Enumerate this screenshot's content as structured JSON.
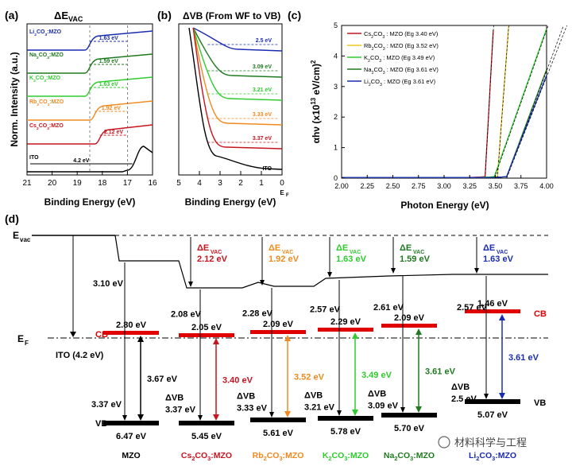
{
  "panel_labels": {
    "a": "(a)",
    "b": "(b)",
    "c": "(c)",
    "d": "(d)"
  },
  "chart_data": [
    {
      "type": "line",
      "panel": "(a)",
      "title": "ΔE_VAC",
      "xlabel": "Binding Energy (eV)",
      "ylabel": "Norm. Intensity (a.u.)",
      "x_ticks": [
        "21",
        "20",
        "19",
        "18",
        "17",
        "16"
      ],
      "xlim": [
        21,
        16
      ],
      "series": [
        {
          "name": "Li2CO3:MZO",
          "color": "#1a2db0",
          "cutoff": 18.5,
          "annotation": "1.63 eV"
        },
        {
          "name": "Na2CO3:MZO",
          "color": "#1f7a1f",
          "cutoff": 18.5,
          "annotation": "1.59 eV"
        },
        {
          "name": "K2CO3:MZO",
          "color": "#2ecc2e",
          "cutoff": 18.5,
          "annotation": "1.63 eV"
        },
        {
          "name": "Rb2CO3:MZO",
          "color": "#f08a1e",
          "cutoff": 18.3,
          "annotation": "1.92 eV"
        },
        {
          "name": "Cs2CO3:MZO",
          "color": "#c8141e",
          "cutoff": 18.1,
          "annotation": "2.12 eV"
        },
        {
          "name": "ITO",
          "color": "#000000",
          "cutoff": 16.5,
          "annotation": "4.2 eV"
        }
      ]
    },
    {
      "type": "line",
      "panel": "(b)",
      "title": "ΔVB (From WF to VB)",
      "xlabel": "Binding Energy (eV)",
      "x_ticks": [
        "5",
        "4",
        "3",
        "2",
        "1",
        "0"
      ],
      "x_end_label": "E_F",
      "xlim": [
        5,
        0
      ],
      "series": [
        {
          "name": "Li2CO3:MZO",
          "color": "#1a2db0",
          "annotation": "2.5 eV"
        },
        {
          "name": "Na2CO3:MZO",
          "color": "#1f7a1f",
          "annotation": "3.09 eV"
        },
        {
          "name": "K2CO3:MZO",
          "color": "#2ecc2e",
          "annotation": "3.21 eV"
        },
        {
          "name": "Rb2CO3:MZO",
          "color": "#f08a1e",
          "annotation": "3.33 eV"
        },
        {
          "name": "Cs2CO3:MZO",
          "color": "#c8141e",
          "annotation": "3.37 eV"
        },
        {
          "name": "ITO",
          "color": "#000000",
          "annotation": "ITO"
        }
      ]
    },
    {
      "type": "line",
      "panel": "(c)",
      "xlabel": "Photon Energy (eV)",
      "ylabel": "αhν (x10^13 eV/cm)^2",
      "x_ticks": [
        "2.00",
        "2.25",
        "2.50",
        "2.75",
        "3.00",
        "3.25",
        "3.50",
        "3.75",
        "4.00"
      ],
      "y_ticks": [
        "0",
        "1",
        "2",
        "3",
        "4",
        "5"
      ],
      "xlim": [
        2.0,
        4.0
      ],
      "ylim": [
        0,
        5
      ],
      "legend_position": "top-left",
      "series": [
        {
          "name": "Cs2CO3 : MZO (Eg 3.40 eV)",
          "color": "#c8141e",
          "eg": 3.4
        },
        {
          "name": "Rb2CO3 : MZO (Eg 3.52 eV)",
          "color": "#f0c81e",
          "eg": 3.52
        },
        {
          "name": "K2CO3 : MZO (Eg 3.49 eV)",
          "color": "#2ecc2e",
          "eg": 3.49
        },
        {
          "name": "Na2CO3 : MZO (Eg 3.61 eV)",
          "color": "#1f7a1f",
          "eg": 3.61
        },
        {
          "name": "Li2CO3 : MZO (Eg 3.61 eV)",
          "color": "#1a2db0",
          "eg": 3.61
        }
      ]
    }
  ],
  "diagram": {
    "evac_label": "E_vac",
    "ef_label": "E_F",
    "cb_label": "CB",
    "vb_label": "VB",
    "ito_label": "ITO (4.2 eV)",
    "delta_vac_prefix": "ΔE_VAC",
    "mzo_vac_drop": "3.10 eV",
    "mzo_cb": "2.80 eV",
    "columns": [
      {
        "name": "MZO",
        "color": "#000000",
        "wf": "",
        "cb": "2.80 eV",
        "eg": "3.67 eV",
        "dvb": "3.37 eV",
        "vb": "6.47 eV",
        "dvac": ""
      },
      {
        "name": "Cs2CO3:MZO",
        "color": "#c8141e",
        "wf": "2.08 eV",
        "cb": "2.05 eV",
        "eg": "3.40 eV",
        "dvb": "3.37 eV",
        "vb": "5.45 eV",
        "dvac": "2.12 eV"
      },
      {
        "name": "Rb2CO3:MZO",
        "color": "#f08a1e",
        "wf": "2.28 eV",
        "cb": "2.09 eV",
        "eg": "3.52 eV",
        "dvb": "3.33 eV",
        "vb": "5.61 eV",
        "dvac": "1.92 eV"
      },
      {
        "name": "K2CO3:MZO",
        "color": "#2ecc2e",
        "wf": "2.57 eV",
        "cb": "2.29 eV",
        "eg": "3.49 eV",
        "dvb": "3.21 eV",
        "vb": "5.78 eV",
        "dvac": "1.63 eV"
      },
      {
        "name": "Na2CO3:MZO",
        "color": "#1f7a1f",
        "wf": "2.61 eV",
        "cb": "2.09 eV",
        "eg": "3.61 eV",
        "dvb": "3.09 eV",
        "vb": "5.70 eV",
        "dvac": "1.59 eV"
      },
      {
        "name": "Li2CO3:MZO",
        "color": "#1a2db0",
        "wf": "2.57 eV",
        "cb": "1.46 eV",
        "eg": "3.61 eV",
        "dvb": "2.5 eV",
        "vb": "5.07 eV",
        "dvac": "1.63 eV"
      }
    ],
    "dvb_label": "ΔVB",
    "watermark": "材料科学与工程"
  }
}
